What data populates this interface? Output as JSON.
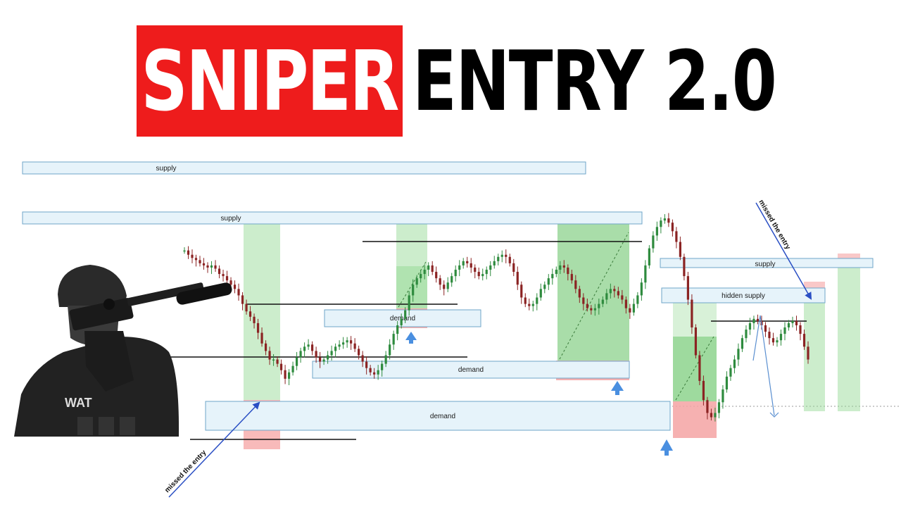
{
  "title": {
    "part1": "SNIPER",
    "part2": "ENTRY 2.0"
  },
  "colors": {
    "title_red": "#ee1c1c",
    "zone_fill": "#e6f3fa",
    "zone_stroke": "#6fa6c8",
    "green_zone": "#8fd68f",
    "red_zone": "#f5a3a3",
    "bull_candle": "#2e8b3e",
    "bear_candle": "#8b2323",
    "arrow_blue": "#4a8fe0",
    "annotation_blue": "#2a4fc4"
  },
  "chart_data": {
    "type": "candlestick",
    "title": "",
    "xlabel": "",
    "ylabel": "",
    "zones": [
      {
        "label": "supply",
        "kind": "supply"
      },
      {
        "label": "supply",
        "kind": "supply"
      },
      {
        "label": "supply",
        "kind": "supply"
      },
      {
        "label": "hidden supply",
        "kind": "supply"
      },
      {
        "label": "demand",
        "kind": "demand"
      },
      {
        "label": "demand",
        "kind": "demand"
      },
      {
        "label": "demand",
        "kind": "demand"
      }
    ],
    "annotations": [
      {
        "text": "missed the entry"
      },
      {
        "text": "missed the entry"
      }
    ],
    "close_prices": [
      182,
      178,
      175,
      173,
      170,
      168,
      166,
      168,
      165,
      160,
      158,
      154,
      150,
      146,
      140,
      132,
      125,
      120,
      114,
      105,
      95,
      88,
      80,
      80,
      76,
      70,
      62,
      68,
      74,
      82,
      88,
      92,
      94,
      88,
      82,
      78,
      80,
      84,
      88,
      92,
      94,
      96,
      98,
      95,
      90,
      84,
      78,
      72,
      68,
      66,
      70,
      76,
      84,
      94,
      104,
      112,
      118,
      126,
      140,
      150,
      156,
      160,
      164,
      168,
      162,
      156,
      150,
      146,
      152,
      158,
      164,
      168,
      172,
      170,
      166,
      162,
      158,
      160,
      164,
      168,
      172,
      176,
      178,
      176,
      170,
      162,
      150,
      138,
      132,
      130,
      132,
      138,
      146,
      150,
      156,
      160,
      164,
      168,
      166,
      160,
      154,
      146,
      138,
      132,
      128,
      126,
      128,
      132,
      136,
      142,
      146,
      144,
      140,
      136,
      128,
      124,
      132,
      140,
      152,
      168,
      184,
      196,
      204,
      210,
      212,
      208,
      200,
      190,
      176,
      158,
      136,
      110,
      84,
      60,
      42,
      30,
      26,
      30,
      40,
      52,
      64,
      72,
      80,
      90,
      100,
      108,
      114,
      118,
      116,
      112,
      106,
      100,
      96,
      98,
      104,
      110,
      114,
      116,
      112,
      104,
      92,
      80
    ]
  }
}
